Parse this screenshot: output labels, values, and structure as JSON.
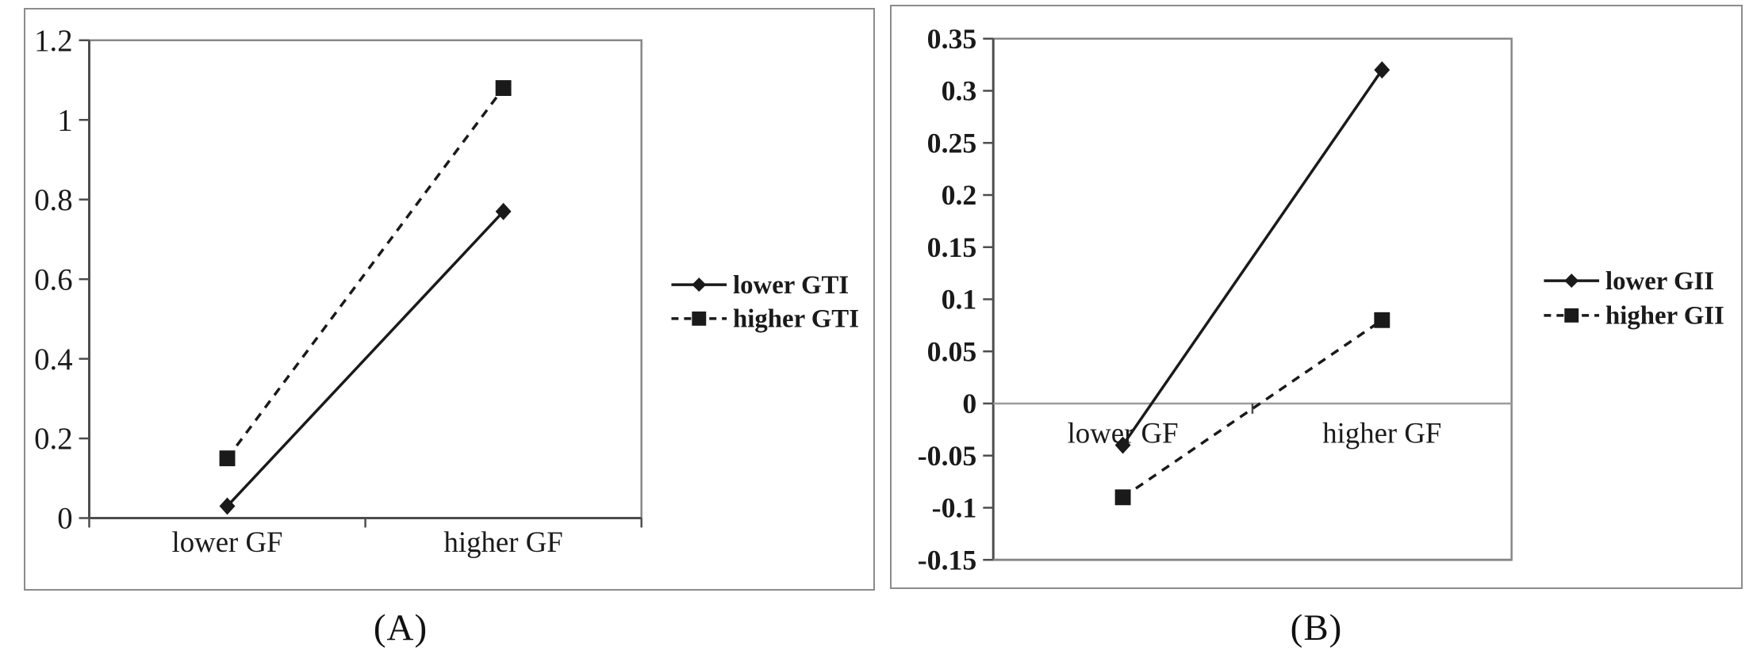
{
  "figure": {
    "captions": [
      "(A)",
      "(B)"
    ],
    "colors": {
      "ink": "#1a1a1a",
      "frame": "#878787",
      "axis": "#4d4d4d",
      "zero_line": "#9b9b9b"
    }
  },
  "chart_data": [
    {
      "type": "line",
      "panel_label": "(A)",
      "categories": [
        "lower GF",
        "higher GF"
      ],
      "series": [
        {
          "name": "lower GTI",
          "values": [
            0.03,
            0.77
          ],
          "line": "solid",
          "marker": "diamond"
        },
        {
          "name": "higher GTI",
          "values": [
            0.15,
            1.08
          ],
          "line": "dashed",
          "marker": "square"
        }
      ],
      "title": "",
      "xlabel": "",
      "ylabel": "",
      "ylim": [
        0,
        1.2
      ],
      "ytick_step": 0.2,
      "ytick_labels": [
        "1.2",
        "1",
        "0.8",
        "0.6",
        "0.4",
        "0.2",
        "0"
      ],
      "grid": false,
      "zero_line": false,
      "legend_position": "right",
      "x_labels_at": "below-axis"
    },
    {
      "type": "line",
      "panel_label": "(B)",
      "categories": [
        "lower GF",
        "higher GF"
      ],
      "series": [
        {
          "name": "lower GII",
          "values": [
            -0.04,
            0.32
          ],
          "line": "solid",
          "marker": "diamond"
        },
        {
          "name": "higher GII",
          "values": [
            -0.09,
            0.08
          ],
          "line": "dashed",
          "marker": "square"
        }
      ],
      "title": "",
      "xlabel": "",
      "ylabel": "",
      "ylim": [
        -0.15,
        0.35
      ],
      "ytick_step": 0.05,
      "ytick_labels": [
        "0.35",
        "0.3",
        "0.25",
        "0.2",
        "0.15",
        "0.1",
        "0.05",
        "0",
        "-0.05",
        "-0.1",
        "-0.15"
      ],
      "grid": false,
      "zero_line": true,
      "legend_position": "right",
      "x_labels_at": "zero-line"
    }
  ]
}
